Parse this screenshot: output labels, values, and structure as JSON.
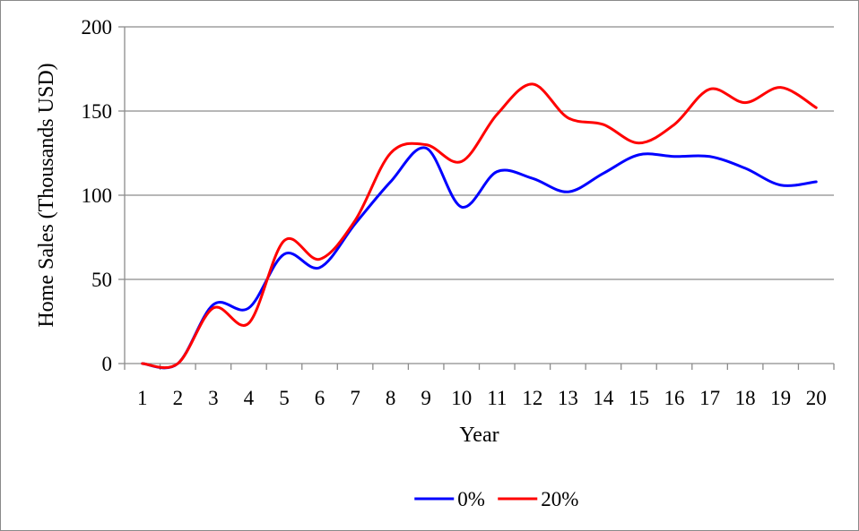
{
  "chart_data": {
    "type": "line",
    "title": "",
    "xlabel": "Year",
    "ylabel": "Home Sales (Thousands USD)",
    "categories": [
      "1",
      "2",
      "3",
      "4",
      "5",
      "6",
      "7",
      "8",
      "9",
      "10",
      "11",
      "12",
      "13",
      "14",
      "15",
      "16",
      "17",
      "18",
      "19",
      "20"
    ],
    "ylim": [
      0,
      200
    ],
    "yticks": [
      0,
      50,
      100,
      150,
      200
    ],
    "grid": "horizontal",
    "legend_position": "bottom",
    "series": [
      {
        "name": "0%",
        "color": "#0000ff",
        "values": [
          0,
          0,
          35,
          33,
          65,
          57,
          83,
          108,
          128,
          93,
          114,
          110,
          102,
          113,
          124,
          123,
          123,
          116,
          106,
          108
        ]
      },
      {
        "name": "20%",
        "color": "#ff0000",
        "values": [
          0,
          0,
          33,
          24,
          73,
          62,
          85,
          125,
          130,
          120,
          148,
          166,
          146,
          142,
          131,
          142,
          163,
          155,
          164,
          152
        ]
      }
    ]
  }
}
